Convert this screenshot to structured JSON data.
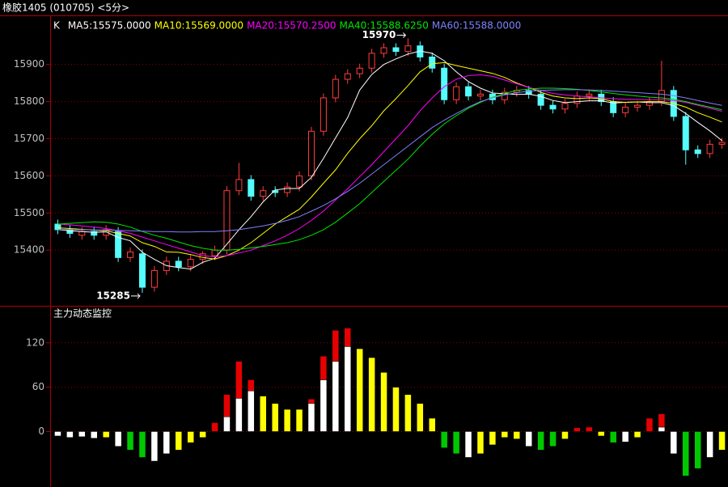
{
  "header": "橡胶1405 (010705) <5分>",
  "chart_data": [
    {
      "type": "candlestick",
      "legend_label": "K",
      "ylim": [
        15250,
        16030
      ],
      "yticks": [
        15400,
        15500,
        15600,
        15700,
        15800,
        15900
      ],
      "grid": true,
      "up_color": "#ff3c3c",
      "down_color": "#54fcfc",
      "open": [
        15470,
        15455,
        15440,
        15450,
        15440,
        15450,
        15380,
        15390,
        15300,
        15345,
        15370,
        15355,
        15375,
        15385,
        15400,
        15560,
        15590,
        15545,
        15560,
        15555,
        15570,
        15600,
        15720,
        15810,
        15860,
        15875,
        15890,
        15930,
        15945,
        15935,
        15950,
        15920,
        15890,
        15805,
        15840,
        15815,
        15820,
        15805,
        15825,
        15830,
        15820,
        15790,
        15780,
        15795,
        15815,
        15820,
        15800,
        15770,
        15785,
        15790,
        15800,
        15830,
        15760,
        15670,
        15660,
        15685
      ],
      "high": [
        15482,
        15467,
        15462,
        15462,
        15467,
        15462,
        15407,
        15402,
        15357,
        15382,
        15382,
        15387,
        15397,
        15412,
        15572,
        15635,
        15602,
        15572,
        15572,
        15582,
        15612,
        15732,
        15822,
        15872,
        15887,
        15902,
        15942,
        15957,
        15957,
        15970,
        15962,
        15932,
        15902,
        15852,
        15852,
        15832,
        15832,
        15837,
        15842,
        15842,
        15832,
        15802,
        15807,
        15827,
        15832,
        15832,
        15812,
        15797,
        15802,
        15812,
        15910,
        15842,
        15772,
        15682,
        15697,
        15702
      ],
      "low": [
        15443,
        15433,
        15428,
        15428,
        15428,
        15368,
        15368,
        15285,
        15288,
        15333,
        15343,
        15343,
        15363,
        15373,
        15388,
        15548,
        15533,
        15533,
        15543,
        15543,
        15558,
        15588,
        15708,
        15798,
        15848,
        15863,
        15878,
        15918,
        15923,
        15923,
        15908,
        15878,
        15793,
        15793,
        15803,
        15803,
        15793,
        15793,
        15813,
        15808,
        15778,
        15768,
        15768,
        15783,
        15803,
        15788,
        15758,
        15758,
        15773,
        15778,
        15788,
        15748,
        15630,
        15648,
        15648,
        15673
      ],
      "close": [
        15455,
        15445,
        15450,
        15440,
        15455,
        15380,
        15395,
        15300,
        15345,
        15370,
        15355,
        15375,
        15390,
        15400,
        15560,
        15590,
        15545,
        15560,
        15555,
        15570,
        15600,
        15720,
        15810,
        15860,
        15875,
        15890,
        15930,
        15945,
        15935,
        15950,
        15920,
        15890,
        15805,
        15840,
        15815,
        15820,
        15805,
        15825,
        15830,
        15820,
        15790,
        15780,
        15795,
        15815,
        15820,
        15800,
        15770,
        15785,
        15790,
        15800,
        15830,
        15760,
        15670,
        15660,
        15685,
        15690
      ],
      "series": [
        {
          "name": "MA5:15575.0000",
          "color": "#ffffff",
          "values": [
            15455,
            15452,
            15450,
            15448,
            15449,
            15434,
            15425,
            15394,
            15375,
            15358,
            15353,
            15349,
            15367,
            15378,
            15416,
            15455,
            15490,
            15530,
            15562,
            15566,
            15566,
            15596,
            15647,
            15702,
            15757,
            15831,
            15873,
            15900,
            15915,
            15928,
            15936,
            15930,
            15910,
            15880,
            15854,
            15836,
            15823,
            15821,
            15819,
            15820,
            15814,
            15803,
            15797,
            15800,
            15802,
            15802,
            15796,
            15798,
            15799,
            15797,
            15797,
            15789,
            15768,
            15744,
            15721,
            15695
          ]
        },
        {
          "name": "MA10:15569.0000",
          "color": "#ffff00",
          "values": [
            15460,
            15458,
            15456,
            15454,
            15452,
            15445,
            15438,
            15420,
            15410,
            15395,
            15394,
            15388,
            15380,
            15376,
            15385,
            15400,
            15420,
            15445,
            15470,
            15490,
            15510,
            15543,
            15580,
            15616,
            15661,
            15700,
            15735,
            15775,
            15808,
            15843,
            15880,
            15902,
            15905,
            15897,
            15890,
            15883,
            15876,
            15865,
            15850,
            15838,
            15825,
            15815,
            15810,
            15808,
            15810,
            15808,
            15800,
            15798,
            15799,
            15800,
            15800,
            15795,
            15785,
            15770,
            15758,
            15745
          ]
        },
        {
          "name": "MA20:15570.2500",
          "color": "#ff00ff",
          "values": [
            15470,
            15468,
            15465,
            15462,
            15458,
            15452,
            15445,
            15435,
            15425,
            15415,
            15405,
            15395,
            15385,
            15382,
            15385,
            15392,
            15400,
            15412,
            15425,
            15440,
            15458,
            15480,
            15505,
            15535,
            15565,
            15598,
            15630,
            15665,
            15700,
            15735,
            15775,
            15810,
            15840,
            15860,
            15870,
            15872,
            15868,
            15858,
            15848,
            15838,
            15830,
            15822,
            15818,
            15815,
            15813,
            15810,
            15808,
            15806,
            15806,
            15805,
            15805,
            15803,
            15798,
            15790,
            15782,
            15774
          ]
        },
        {
          "name": "MA40:15588.6250",
          "color": "#00e600",
          "values": [
            15470,
            15472,
            15474,
            15476,
            15475,
            15470,
            15462,
            15450,
            15440,
            15432,
            15422,
            15412,
            15405,
            15400,
            15400,
            15402,
            15406,
            15410,
            15415,
            15420,
            15428,
            15440,
            15455,
            15475,
            15500,
            15525,
            15555,
            15585,
            15615,
            15645,
            15680,
            15712,
            15740,
            15762,
            15782,
            15798,
            15812,
            15822,
            15830,
            15834,
            15836,
            15836,
            15835,
            15833,
            15830,
            15826,
            15822,
            15818,
            15815,
            15812,
            15810,
            15806,
            15800,
            15792,
            15785,
            15778
          ]
        },
        {
          "name": "MA60:15588.0000",
          "color": "#8080ff",
          "values": [
            15455,
            15455,
            15455,
            15454,
            15454,
            15453,
            15452,
            15451,
            15450,
            15450,
            15449,
            15449,
            15450,
            15450,
            15452,
            15455,
            15460,
            15465,
            15472,
            15480,
            15490,
            15505,
            15520,
            15538,
            15558,
            15580,
            15605,
            15630,
            15655,
            15680,
            15705,
            15730,
            15750,
            15768,
            15785,
            15800,
            15810,
            15818,
            15824,
            15828,
            15830,
            15831,
            15832,
            15832,
            15831,
            15830,
            15828,
            15826,
            15824,
            15822,
            15820,
            15816,
            15810,
            15803,
            15796,
            15790
          ]
        }
      ],
      "annotations": [
        {
          "text": 15970
        },
        {
          "text": 15285
        }
      ]
    },
    {
      "type": "bar",
      "title": "主力动态监控",
      "ylim": [
        -75,
        169
      ],
      "yticks": [
        0,
        60,
        120
      ],
      "grid": true,
      "series": [
        {
          "color": "#ffffff",
          "values": [
            -6,
            -8,
            -7,
            -9,
            null,
            -20,
            null,
            null,
            -40,
            -30,
            null,
            null,
            null,
            null,
            20,
            45,
            55,
            null,
            null,
            null,
            null,
            38,
            70,
            95,
            115,
            null,
            null,
            null,
            null,
            null,
            null,
            null,
            null,
            null,
            -35,
            null,
            null,
            null,
            null,
            -20,
            null,
            null,
            null,
            null,
            null,
            null,
            null,
            -14,
            null,
            null,
            6,
            -30,
            null,
            null,
            -35,
            null
          ]
        },
        {
          "color": "#ffff00",
          "values": [
            null,
            null,
            null,
            null,
            -8,
            null,
            null,
            null,
            null,
            null,
            -25,
            -15,
            -8,
            null,
            null,
            null,
            null,
            48,
            38,
            30,
            30,
            null,
            null,
            null,
            null,
            112,
            100,
            80,
            60,
            50,
            38,
            18,
            null,
            null,
            null,
            -30,
            -18,
            -8,
            -10,
            null,
            null,
            null,
            -10,
            null,
            null,
            -6,
            null,
            null,
            -8,
            null,
            null,
            null,
            null,
            null,
            null,
            -25
          ]
        },
        {
          "color": "#00c800",
          "values": [
            null,
            null,
            null,
            null,
            null,
            null,
            -25,
            -35,
            null,
            null,
            null,
            null,
            null,
            null,
            null,
            null,
            null,
            null,
            null,
            null,
            null,
            null,
            null,
            null,
            null,
            null,
            null,
            null,
            null,
            null,
            null,
            null,
            -22,
            -30,
            null,
            null,
            null,
            null,
            null,
            null,
            -25,
            -20,
            null,
            null,
            null,
            null,
            -15,
            null,
            null,
            null,
            null,
            null,
            -60,
            -50,
            null,
            null
          ]
        },
        {
          "color": "#e60000",
          "values": [
            null,
            null,
            null,
            null,
            null,
            null,
            null,
            null,
            null,
            null,
            null,
            null,
            null,
            12,
            30,
            50,
            15,
            null,
            null,
            null,
            null,
            6,
            32,
            42,
            25,
            null,
            null,
            null,
            null,
            null,
            null,
            null,
            null,
            null,
            null,
            null,
            null,
            null,
            null,
            null,
            null,
            null,
            null,
            5,
            6,
            null,
            null,
            null,
            null,
            18,
            18,
            null,
            null,
            null,
            null,
            null
          ]
        }
      ]
    }
  ]
}
